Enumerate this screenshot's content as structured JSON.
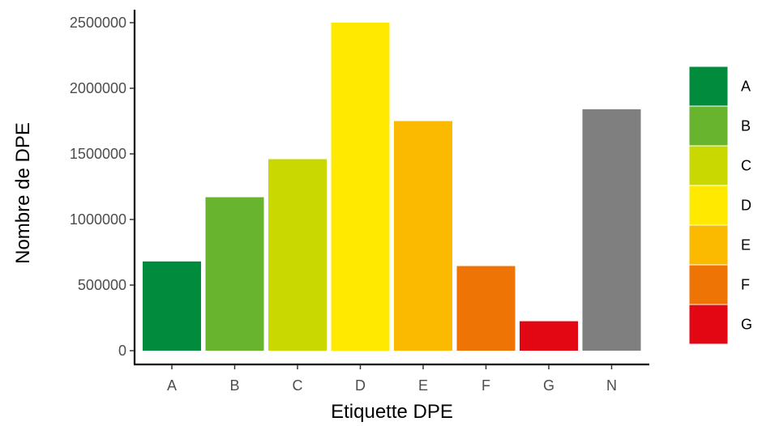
{
  "chart_data": {
    "type": "bar",
    "categories": [
      "A",
      "B",
      "C",
      "D",
      "E",
      "F",
      "G",
      "N"
    ],
    "values": [
      680000,
      1170000,
      1460000,
      2500000,
      1750000,
      645000,
      225000,
      1840000
    ],
    "colors": [
      "#008c3c",
      "#68b42f",
      "#c8d800",
      "#ffe900",
      "#fbb900",
      "#ee7406",
      "#e30613",
      "#7f7f7f"
    ],
    "xlabel": "Etiquette DPE",
    "ylabel": "Nombre de DPE",
    "ylim": [
      0,
      2500000
    ],
    "yticks": [
      0,
      500000,
      1000000,
      1500000,
      2000000,
      2500000
    ],
    "grid": false,
    "legend": {
      "placement": "right",
      "entries": [
        {
          "label": "A",
          "color": "#008c3c"
        },
        {
          "label": "B",
          "color": "#68b42f"
        },
        {
          "label": "C",
          "color": "#c8d800"
        },
        {
          "label": "D",
          "color": "#ffe900"
        },
        {
          "label": "E",
          "color": "#fbb900"
        },
        {
          "label": "F",
          "color": "#ee7406"
        },
        {
          "label": "G",
          "color": "#e30613"
        }
      ]
    }
  }
}
